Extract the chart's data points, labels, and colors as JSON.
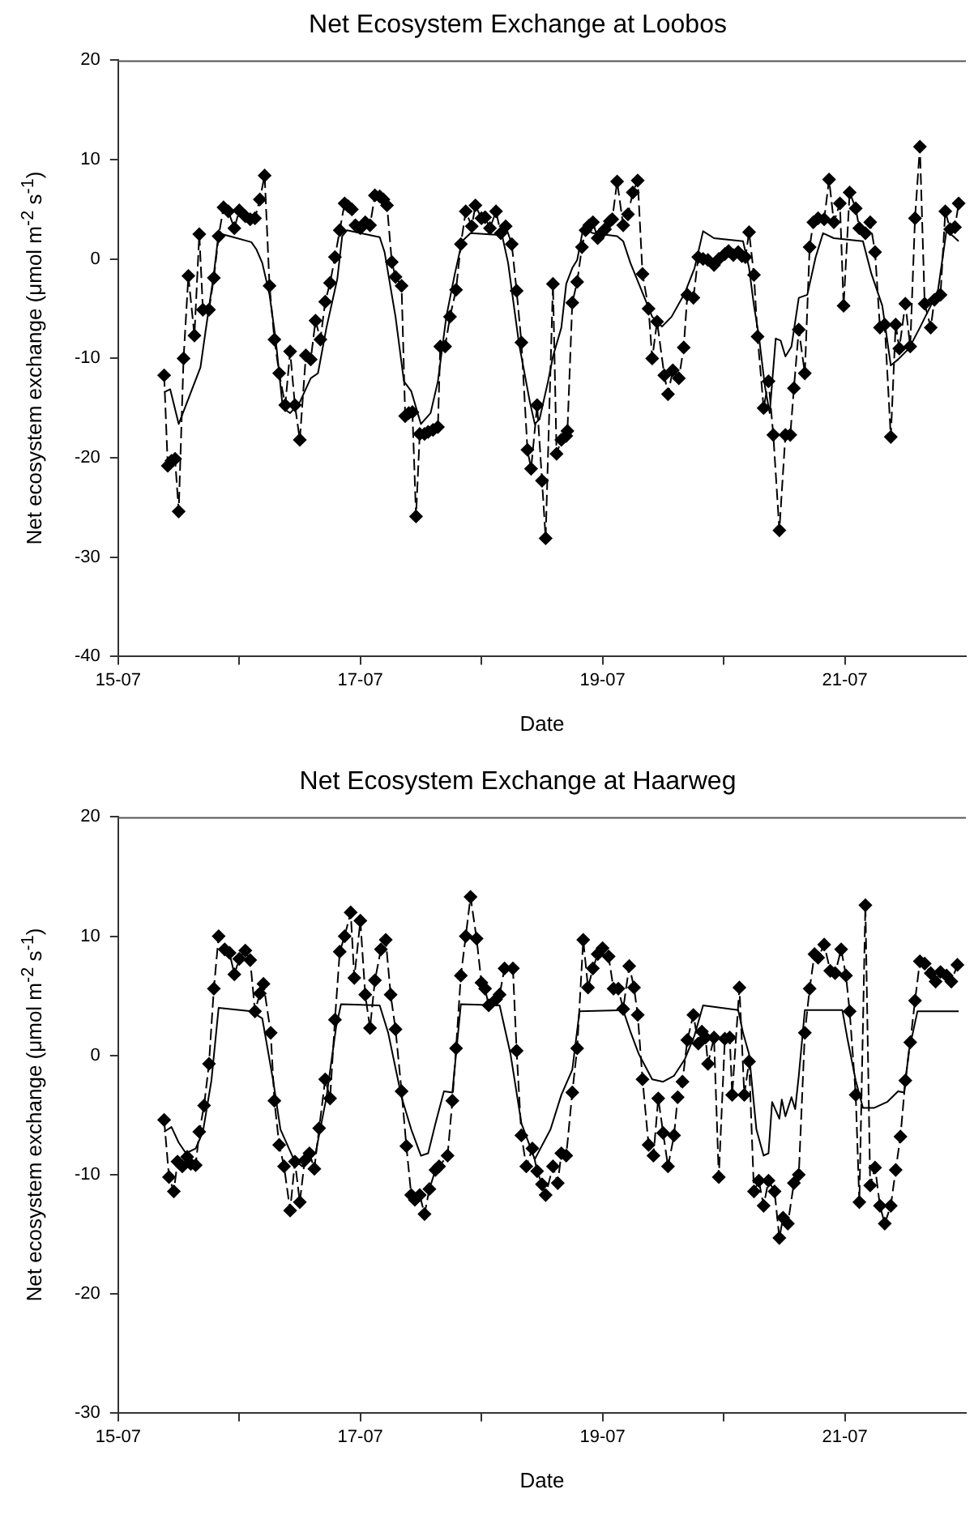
{
  "chart_data": [
    {
      "type": "line",
      "title": "Net Ecosystem Exchange at Loobos",
      "xlabel": "Date",
      "ylabel": "Net ecosystem exchange (μmol m$^{-2}$ s$^{-1}$)",
      "xlim": [
        "--07-15",
        "--07-22"
      ],
      "xticks": [
        {
          "value": "--07-15",
          "label": "15-07"
        },
        {
          "value": "--07-16",
          "label": null
        },
        {
          "value": "--07-17",
          "label": "17-07"
        },
        {
          "value": "--07-18",
          "label": null
        },
        {
          "value": "--07-19",
          "label": "19-07"
        },
        {
          "value": "--07-20",
          "label": null
        },
        {
          "value": "--07-21",
          "label": "21-07"
        }
      ],
      "ylim": [
        -40,
        20
      ],
      "yticks": [
        -40,
        -30,
        -20,
        -10,
        0,
        10,
        20
      ],
      "grid": false,
      "series": [
        {
          "color": "#000000",
          "marker": "diamond",
          "line_style": "dashed",
          "x": [
            "--07-15T09:07",
            "--07-15T09:50",
            "--07-15T10:34",
            "--07-15T11:17",
            "--07-15T12:00",
            "--07-15T12:58",
            "--07-15T13:55",
            "--07-15T15:07",
            "--07-15T16:05",
            "--07-15T16:48",
            "--07-15T18:00",
            "--07-15T18:58",
            "--07-15T19:55",
            "--07-15T20:53",
            "--07-15T21:50",
            "--07-15T23:02",
            "--07-16T00:00",
            "--07-16T01:12",
            "--07-16T02:10",
            "--07-16T03:07",
            "--07-16T04:05",
            "--07-16T05:02",
            "--07-16T06:00",
            "--07-16T06:58",
            "--07-16T07:55",
            "--07-16T09:07",
            "--07-16T10:05",
            "--07-16T11:02",
            "--07-16T12:00",
            "--07-16T13:12",
            "--07-16T14:10",
            "--07-16T15:07",
            "--07-16T16:05",
            "--07-16T17:02",
            "--07-16T18:00",
            "--07-16T18:58",
            "--07-16T19:55",
            "--07-16T20:53",
            "--07-16T21:36",
            "--07-16T22:19",
            "--07-16T23:02",
            "--07-17T00:00",
            "--07-17T00:58",
            "--07-17T01:55",
            "--07-17T02:53",
            "--07-17T03:50",
            "--07-17T04:34",
            "--07-17T05:17",
            "--07-17T06:14",
            "--07-17T06:58",
            "--07-17T08:10",
            "--07-17T08:53",
            "--07-17T09:36",
            "--07-17T10:19",
            "--07-17T11:02",
            "--07-17T11:46",
            "--07-17T12:43",
            "--07-17T13:26",
            "--07-17T14:24",
            "--07-17T15:22",
            "--07-17T15:50",
            "--07-17T16:48",
            "--07-17T17:46",
            "--07-17T18:58",
            "--07-17T19:55",
            "--07-17T20:53",
            "--07-17T22:05",
            "--07-17T22:48",
            "--07-18T00:00",
            "--07-18T00:43",
            "--07-18T01:41",
            "--07-18T02:53",
            "--07-18T03:50",
            "--07-18T04:48",
            "--07-18T06:00",
            "--07-18T06:58",
            "--07-18T07:55",
            "--07-18T09:07",
            "--07-18T09:50",
            "--07-18T11:02",
            "--07-18T12:00",
            "--07-18T12:43",
            "--07-18T14:10",
            "--07-18T14:53",
            "--07-18T15:50",
            "--07-18T16:48",
            "--07-18T17:02",
            "--07-18T18:00",
            "--07-18T18:58",
            "--07-18T19:55",
            "--07-18T20:38",
            "--07-18T21:22",
            "--07-18T22:05",
            "--07-18T23:02",
            "--07-18T23:46",
            "--07-19T00:29",
            "--07-19T01:26",
            "--07-19T01:55",
            "--07-19T02:53",
            "--07-19T04:05",
            "--07-19T05:02",
            "--07-19T06:00",
            "--07-19T06:58",
            "--07-19T07:55",
            "--07-19T09:07",
            "--07-19T09:50",
            "--07-19T10:48",
            "--07-19T12:14",
            "--07-19T12:58",
            "--07-19T13:55",
            "--07-19T15:07",
            "--07-19T16:05",
            "--07-19T16:48",
            "--07-19T18:00",
            "--07-19T18:58",
            "--07-19T19:55",
            "--07-19T20:53",
            "--07-19T22:05",
            "--07-19T23:02",
            "--07-20T00:14",
            "--07-20T00:58",
            "--07-20T01:55",
            "--07-20T02:53",
            "--07-20T03:36",
            "--07-20T04:19",
            "--07-20T05:02",
            "--07-20T06:00",
            "--07-20T06:43",
            "--07-20T07:55",
            "--07-20T08:53",
            "--07-20T09:50",
            "--07-20T11:02",
            "--07-20T12:14",
            "--07-20T13:12",
            "--07-20T13:55",
            "--07-20T14:53",
            "--07-20T16:05",
            "--07-20T17:02",
            "--07-20T17:46",
            "--07-20T18:43",
            "--07-20T19:55",
            "--07-20T20:53",
            "--07-20T21:50",
            "--07-20T23:02",
            "--07-20T23:46",
            "--07-21T00:58",
            "--07-21T02:10",
            "--07-21T02:53",
            "--07-21T04:05",
            "--07-21T05:02",
            "--07-21T06:00",
            "--07-21T06:58",
            "--07-21T07:55",
            "--07-21T09:07",
            "--07-21T10:05",
            "--07-21T10:48",
            "--07-21T12:00",
            "--07-21T12:58",
            "--07-21T13:55",
            "--07-21T14:53",
            "--07-21T15:50",
            "--07-21T17:02",
            "--07-21T17:46",
            "--07-21T18:58",
            "--07-21T19:55",
            "--07-21T20:53",
            "--07-21T21:50",
            "--07-21T22:34"
          ],
          "values": [
            -11.7,
            -20.8,
            -20.3,
            -20.1,
            -25.4,
            -10.0,
            -1.7,
            -7.7,
            2.5,
            -5.1,
            -5.1,
            -1.9,
            2.3,
            5.2,
            4.8,
            3.1,
            4.9,
            4.3,
            4.0,
            4.1,
            6.0,
            8.4,
            -2.7,
            -8.1,
            -11.5,
            -14.7,
            -9.3,
            -14.7,
            -18.2,
            -9.7,
            -10.1,
            -6.2,
            -8.1,
            -4.3,
            -2.4,
            0.2,
            2.9,
            5.6,
            5.3,
            5.0,
            3.4,
            3.1,
            3.7,
            3.4,
            6.4,
            6.3,
            6.0,
            5.4,
            -0.3,
            -1.8,
            -2.7,
            -15.8,
            -15.5,
            -15.4,
            -25.9,
            -17.6,
            -17.6,
            -17.4,
            -17.2,
            -16.9,
            -8.8,
            -8.8,
            -5.8,
            -3.1,
            1.5,
            4.8,
            3.3,
            5.4,
            4.1,
            4.2,
            3.1,
            4.8,
            2.6,
            3.3,
            1.5,
            -3.2,
            -8.4,
            -19.2,
            -21.1,
            -14.7,
            -22.3,
            -28.1,
            -2.5,
            -19.6,
            -18.2,
            -17.8,
            -17.3,
            -4.4,
            -2.3,
            1.2,
            2.9,
            3.4,
            3.7,
            2.1,
            2.6,
            3.0,
            3.8,
            4.0,
            7.8,
            3.4,
            4.5,
            6.7,
            7.9,
            -1.5,
            -5.0,
            -10.0,
            -6.3,
            -11.7,
            -13.6,
            -11.2,
            -12.0,
            -8.9,
            -3.6,
            -3.9,
            0.2,
            0.0,
            -0.1,
            -0.6,
            0.0,
            0.5,
            0.8,
            0.4,
            0.7,
            0.3,
            0.2,
            2.7,
            -1.6,
            -7.8,
            -15.0,
            -12.3,
            -17.7,
            -27.3,
            -17.7,
            -17.7,
            -13.0,
            -7.1,
            -11.5,
            1.2,
            3.7,
            4.1,
            4.0,
            8.0,
            3.7,
            5.6,
            -4.7,
            6.7,
            5.1,
            3.1,
            2.6,
            3.7,
            0.7,
            -6.9,
            -6.6,
            -17.9,
            -6.6,
            -9.0,
            -4.5,
            -8.8,
            4.1,
            11.3,
            -4.5,
            -6.9,
            -4.1,
            -3.6,
            4.8,
            3.0,
            3.2,
            5.6
          ]
        },
        {
          "color": "#000000",
          "marker": "none",
          "line_style": "solid",
          "x": [
            "--07-15T09:07",
            "--07-15T10:19",
            "--07-15T12:00",
            "--07-15T16:19",
            "--07-15T17:17",
            "--07-15T18:58",
            "--07-15T19:55",
            "--07-15T22:05",
            "--07-16T02:24",
            "--07-16T03:22",
            "--07-16T04:34",
            "--07-16T06:00",
            "--07-16T07:12",
            "--07-16T08:38",
            "--07-16T10:05",
            "--07-16T12:00",
            "--07-16T14:10",
            "--07-16T15:36",
            "--07-16T17:17",
            "--07-16T19:26",
            "--07-16T20:24",
            "--07-16T21:22",
            "--07-17T03:50",
            "--07-17T04:48",
            "--07-17T06:58",
            "--07-17T08:38",
            "--07-17T10:05",
            "--07-17T12:00",
            "--07-17T13:55",
            "--07-17T15:22",
            "--07-17T17:02",
            "--07-17T18:43",
            "--07-17T20:10",
            "--07-17T21:50",
            "--07-18T04:05",
            "--07-18T05:17",
            "--07-18T07:26",
            "--07-18T09:36",
            "--07-18T10:34",
            "--07-18T11:31",
            "--07-18T13:12",
            "--07-18T14:10",
            "--07-18T15:50",
            "--07-18T16:48",
            "--07-18T18:00",
            "--07-18T18:58",
            "--07-18T20:10",
            "--07-18T22:05",
            "--07-19T02:53",
            "--07-19T04:05",
            "--07-19T05:31",
            "--07-19T07:12",
            "--07-19T09:50",
            "--07-19T11:46",
            "--07-19T13:41",
            "--07-19T16:19",
            "--07-19T18:14",
            "--07-19T19:55",
            "--07-19T22:05",
            "--07-20T03:50",
            "--07-20T05:02",
            "--07-20T06:00",
            "--07-20T06:58",
            "--07-20T08:10",
            "--07-20T09:07",
            "--07-20T10:19",
            "--07-20T11:17",
            "--07-20T12:14",
            "--07-20T13:26",
            "--07-20T14:53",
            "--07-20T16:34",
            "--07-20T18:14",
            "--07-20T19:41",
            "--07-20T21:50",
            "--07-21T03:36",
            "--07-21T05:17",
            "--07-21T07:26",
            "--07-21T09:07",
            "--07-21T10:34",
            "--07-21T12:43",
            "--07-21T14:53",
            "--07-21T17:02",
            "--07-21T18:29",
            "--07-21T20:10",
            "--07-21T22:34"
          ],
          "values": [
            -13.4,
            -13.1,
            -16.6,
            -10.9,
            -7.4,
            -1.5,
            2.6,
            2.3,
            1.7,
            1.0,
            -0.4,
            -3.6,
            -8.0,
            -15.0,
            -15.5,
            -14.4,
            -12.0,
            -11.5,
            -6.9,
            -2.0,
            2.3,
            2.9,
            2.2,
            0.7,
            -5.8,
            -12.3,
            -13.3,
            -16.6,
            -15.5,
            -12.3,
            -5.8,
            -1.5,
            1.8,
            2.6,
            2.4,
            -0.4,
            -8.5,
            -14.4,
            -16.6,
            -16.1,
            -12.3,
            -9.8,
            -6.9,
            -2.5,
            -0.9,
            -0.1,
            3.1,
            2.6,
            2.3,
            1.8,
            -0.4,
            -2.5,
            -5.8,
            -6.8,
            -5.8,
            -3.4,
            -0.9,
            2.8,
            2.1,
            1.8,
            -0.9,
            -4.7,
            -7.7,
            -12.8,
            -15.5,
            -8.0,
            -8.2,
            -9.8,
            -8.8,
            -3.9,
            -3.6,
            0.2,
            2.6,
            2.1,
            1.8,
            -1.5,
            -4.7,
            -10.7,
            -10.1,
            -9.0,
            -6.9,
            -4.7,
            -3.1,
            2.9,
            1.8
          ]
        }
      ]
    },
    {
      "type": "line",
      "title": "Net Ecosystem Exchange at Haarweg",
      "xlabel": "Date",
      "ylabel": "Net ecosystem exchange (μmol m$^{-2}$ s$^{-1}$)",
      "xlim": [
        "--07-15",
        "--07-22"
      ],
      "xticks": [
        {
          "value": "--07-15",
          "label": "15-07"
        },
        {
          "value": "--07-16",
          "label": null
        },
        {
          "value": "--07-17",
          "label": "17-07"
        },
        {
          "value": "--07-18",
          "label": null
        },
        {
          "value": "--07-19",
          "label": "19-07"
        },
        {
          "value": "--07-20",
          "label": null
        },
        {
          "value": "--07-21",
          "label": "21-07"
        }
      ],
      "ylim": [
        -30,
        20
      ],
      "yticks": [
        -30,
        -20,
        -10,
        0,
        10,
        20
      ],
      "grid": false,
      "series": [
        {
          "color": "#000000",
          "marker": "diamond",
          "line_style": "dashed",
          "x": [
            "--07-15T09:07",
            "--07-15T10:05",
            "--07-15T11:02",
            "--07-15T11:46",
            "--07-15T12:43",
            "--07-15T13:41",
            "--07-15T14:24",
            "--07-15T15:22",
            "--07-15T16:05",
            "--07-15T17:02",
            "--07-15T18:00",
            "--07-15T18:58",
            "--07-15T19:55",
            "--07-15T21:07",
            "--07-15T22:05",
            "--07-15T23:02",
            "--07-16T00:00",
            "--07-16T01:12",
            "--07-16T02:10",
            "--07-16T03:07",
            "--07-16T04:05",
            "--07-16T04:48",
            "--07-16T06:14",
            "--07-16T06:58",
            "--07-16T07:55",
            "--07-16T08:53",
            "--07-16T10:05",
            "--07-16T11:02",
            "--07-16T12:00",
            "--07-16T12:58",
            "--07-16T13:55",
            "--07-16T14:53",
            "--07-16T15:50",
            "--07-16T17:02",
            "--07-16T18:00",
            "--07-16T18:58",
            "--07-16T19:55",
            "--07-16T20:53",
            "--07-16T22:05",
            "--07-16T22:48",
            "--07-17T00:00",
            "--07-17T00:58",
            "--07-17T01:55",
            "--07-17T02:53",
            "--07-17T04:05",
            "--07-17T05:02",
            "--07-17T06:00",
            "--07-17T06:58",
            "--07-17T08:10",
            "--07-17T09:07",
            "--07-17T10:05",
            "--07-17T10:48",
            "--07-17T11:46",
            "--07-17T12:43",
            "--07-17T13:41",
            "--07-17T14:53",
            "--07-17T15:36",
            "--07-17T17:17",
            "--07-17T18:14",
            "--07-17T18:58",
            "--07-17T19:55",
            "--07-17T20:53",
            "--07-17T21:50",
            "--07-17T23:02",
            "--07-18T00:00",
            "--07-18T00:43",
            "--07-18T01:26",
            "--07-18T02:53",
            "--07-18T03:36",
            "--07-18T04:34",
            "--07-18T06:14",
            "--07-18T06:58",
            "--07-18T07:55",
            "--07-18T08:53",
            "--07-18T10:05",
            "--07-18T11:02",
            "--07-18T12:00",
            "--07-18T12:43",
            "--07-18T14:10",
            "--07-18T15:07",
            "--07-18T15:50",
            "--07-18T16:48",
            "--07-18T18:00",
            "--07-18T18:58",
            "--07-18T20:10",
            "--07-18T21:07",
            "--07-18T22:05",
            "--07-18T23:02",
            "--07-19T00:00",
            "--07-19T01:12",
            "--07-19T02:10",
            "--07-19T03:07",
            "--07-19T04:05",
            "--07-19T05:17",
            "--07-19T06:14",
            "--07-19T06:58",
            "--07-19T07:55",
            "--07-19T09:07",
            "--07-19T10:05",
            "--07-19T11:02",
            "--07-19T12:00",
            "--07-19T12:58",
            "--07-19T14:10",
            "--07-19T14:53",
            "--07-19T15:50",
            "--07-19T16:48",
            "--07-19T18:00",
            "--07-19T18:58",
            "--07-19T19:41",
            "--07-19T20:24",
            "--07-19T20:53",
            "--07-19T22:05",
            "--07-19T23:02",
            "--07-20T00:14",
            "--07-20T01:12",
            "--07-20T01:41",
            "--07-20T03:07",
            "--07-20T04:05",
            "--07-20T05:02",
            "--07-20T06:00",
            "--07-20T06:58",
            "--07-20T07:55",
            "--07-20T08:53",
            "--07-20T10:05",
            "--07-20T11:02",
            "--07-20T11:46",
            "--07-20T12:43",
            "--07-20T13:55",
            "--07-20T14:53",
            "--07-20T16:05",
            "--07-20T17:02",
            "--07-20T18:00",
            "--07-20T18:43",
            "--07-20T19:55",
            "--07-20T21:07",
            "--07-20T22:05",
            "--07-20T23:17",
            "--07-21T00:14",
            "--07-21T00:58",
            "--07-21T02:10",
            "--07-21T02:53",
            "--07-21T04:05",
            "--07-21T05:02",
            "--07-21T06:00",
            "--07-21T06:58",
            "--07-21T07:55",
            "--07-21T09:07",
            "--07-21T10:05",
            "--07-21T11:02",
            "--07-21T12:00",
            "--07-21T12:58",
            "--07-21T13:55",
            "--07-21T14:53",
            "--07-21T15:50",
            "--07-21T17:02",
            "--07-21T18:00",
            "--07-21T18:58",
            "--07-21T20:10",
            "--07-21T21:07",
            "--07-21T22:19"
          ],
          "values": [
            -5.4,
            -10.2,
            -11.4,
            -8.9,
            -9.3,
            -8.5,
            -9.1,
            -9.2,
            -6.4,
            -4.2,
            -0.7,
            5.6,
            10.0,
            8.9,
            8.6,
            6.8,
            8.1,
            8.8,
            8.0,
            3.7,
            5.2,
            6.0,
            1.9,
            -3.8,
            -7.5,
            -9.3,
            -13.0,
            -8.9,
            -12.3,
            -8.8,
            -8.2,
            -9.5,
            -6.1,
            -2.0,
            -3.6,
            3.0,
            8.7,
            10.0,
            12.0,
            6.5,
            11.3,
            5.1,
            2.3,
            6.3,
            8.9,
            9.7,
            5.1,
            2.2,
            -3.0,
            -7.6,
            -11.7,
            -12.1,
            -11.7,
            -13.3,
            -11.2,
            -9.6,
            -9.3,
            -8.4,
            -3.8,
            0.6,
            6.7,
            10.0,
            13.3,
            9.8,
            6.1,
            5.6,
            4.2,
            4.7,
            5.1,
            7.3,
            7.3,
            0.4,
            -6.7,
            -9.3,
            -7.8,
            -9.7,
            -10.8,
            -11.7,
            -9.3,
            -10.7,
            -8.2,
            -8.4,
            -3.1,
            0.6,
            9.7,
            5.7,
            7.3,
            8.5,
            9.0,
            8.3,
            5.6,
            5.6,
            3.9,
            7.5,
            5.7,
            3.4,
            -2.0,
            -7.5,
            -8.4,
            -3.6,
            -6.5,
            -9.3,
            -6.7,
            -3.5,
            -2.2,
            1.3,
            3.4,
            1.0,
            2.0,
            1.5,
            -0.7,
            1.5,
            -10.2,
            1.4,
            1.5,
            -3.3,
            5.7,
            -3.3,
            -0.5,
            -11.4,
            -10.5,
            -12.6,
            -10.5,
            -11.4,
            -15.3,
            -13.6,
            -14.1,
            -10.7,
            -10.0,
            1.9,
            5.6,
            8.5,
            8.2,
            9.3,
            7.1,
            6.9,
            8.9,
            6.7,
            3.7,
            -3.3,
            -12.3,
            12.6,
            -10.9,
            -9.4,
            -12.6,
            -14.1,
            -12.6,
            -9.6,
            -6.8,
            -2.1,
            1.1,
            4.6,
            7.9,
            7.7,
            6.9,
            6.2,
            7.0,
            6.7,
            6.2,
            7.6
          ]
        },
        {
          "color": "#000000",
          "marker": "none",
          "line_style": "solid",
          "x": [
            "--07-15T09:07",
            "--07-15T10:34",
            "--07-15T12:00",
            "--07-15T13:26",
            "--07-15T15:22",
            "--07-15T16:48",
            "--07-15T18:29",
            "--07-15T19:55",
            "--07-16T02:24",
            "--07-16T04:34",
            "--07-16T06:43",
            "--07-16T08:10",
            "--07-16T10:48",
            "--07-16T12:29",
            "--07-16T15:07",
            "--07-16T17:17",
            "--07-16T19:12",
            "--07-16T20:10",
            "--07-17T03:50",
            "--07-17T05:31",
            "--07-17T08:10",
            "--07-17T10:05",
            "--07-17T12:00",
            "--07-17T13:26",
            "--07-17T14:53",
            "--07-17T16:34",
            "--07-17T18:14",
            "--07-17T19:55",
            "--07-18T03:36",
            "--07-18T05:46",
            "--07-18T07:55",
            "--07-18T10:34",
            "--07-18T13:41",
            "--07-18T15:50",
            "--07-18T18:00",
            "--07-18T19:26",
            "--07-19T04:05",
            "--07-19T05:31",
            "--07-19T07:12",
            "--07-19T09:50",
            "--07-19T12:00",
            "--07-19T14:10",
            "--07-19T16:19",
            "--07-19T18:14",
            "--07-19T19:55",
            "--07-20T02:53",
            "--07-20T03:50",
            "--07-20T05:02",
            "--07-20T06:29",
            "--07-20T07:55",
            "--07-20T08:53",
            "--07-20T09:36",
            "--07-20T11:02",
            "--07-20T11:31",
            "--07-20T12:14",
            "--07-20T13:26",
            "--07-20T14:10",
            "--07-20T14:53",
            "--07-20T16:05",
            "--07-20T23:31",
            "--07-21T00:29",
            "--07-21T02:10",
            "--07-21T03:36",
            "--07-21T05:46",
            "--07-21T08:24",
            "--07-21T10:34",
            "--07-21T11:46",
            "--07-21T12:43",
            "--07-21T14:24",
            "--07-21T22:34"
          ],
          "values": [
            -6.4,
            -6.0,
            -7.3,
            -8.2,
            -7.8,
            -6.4,
            -2.1,
            4.0,
            3.7,
            3.1,
            -2.1,
            -6.2,
            -8.7,
            -9.3,
            -8.2,
            -3.5,
            2.4,
            4.3,
            4.2,
            1.9,
            -3.5,
            -6.2,
            -8.4,
            -8.2,
            -5.7,
            -3.0,
            -3.1,
            4.3,
            4.2,
            0.1,
            -5.7,
            -8.7,
            -6.2,
            -3.3,
            -1.2,
            3.7,
            3.8,
            2.0,
            0.1,
            -2.0,
            -2.2,
            -1.7,
            -0.3,
            1.7,
            4.2,
            3.8,
            1.9,
            0.1,
            -6.2,
            -8.4,
            -8.2,
            -3.9,
            -5.3,
            -3.7,
            -5.1,
            -3.5,
            -4.5,
            -1.7,
            3.8,
            3.8,
            1.5,
            -2.1,
            -4.4,
            -4.4,
            -3.9,
            -3.0,
            -3.1,
            0.4,
            3.7,
            3.7
          ]
        }
      ]
    }
  ]
}
